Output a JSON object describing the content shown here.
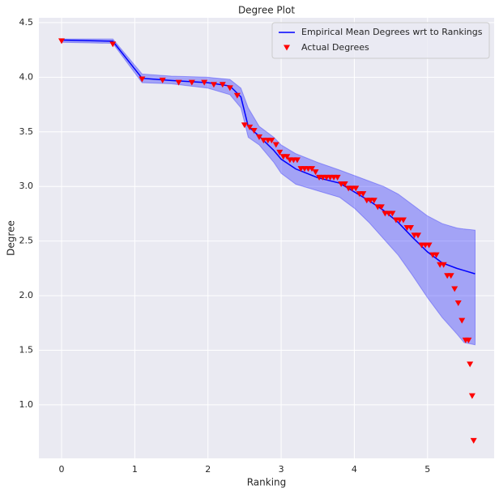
{
  "chart_data": {
    "type": "line",
    "title": "Degree Plot",
    "x_label": "Ranking",
    "y_label": "Degree",
    "xlim": [
      -0.31,
      5.91
    ],
    "ylim": [
      0.51,
      4.544
    ],
    "xticks": [
      0,
      1,
      2,
      3,
      4,
      5
    ],
    "yticks": [
      {
        "value": 1,
        "label": "1.0"
      },
      1.5,
      {
        "value": 2,
        "label": "2.0"
      },
      2.5,
      {
        "value": 3,
        "label": "3.0"
      },
      3.5,
      {
        "value": 4,
        "label": "4.0"
      },
      4.5
    ],
    "grid": true,
    "legend": "upper right",
    "series": [
      {
        "name": "Empirical Mean Degrees wrt to Rankings",
        "type": "line",
        "color": "#0000ff",
        "x": [
          0,
          0.7,
          1.1,
          1.5,
          2.0,
          2.3,
          2.45,
          2.55,
          2.7,
          2.9,
          3.0,
          3.2,
          3.5,
          3.8,
          4.0,
          4.2,
          4.4,
          4.6,
          4.8,
          5.0,
          5.2,
          5.4,
          5.5,
          5.65
        ],
        "values": [
          4.34,
          4.33,
          3.99,
          3.97,
          3.95,
          3.92,
          3.82,
          3.55,
          3.46,
          3.33,
          3.25,
          3.16,
          3.08,
          3.03,
          2.95,
          2.87,
          2.78,
          2.67,
          2.53,
          2.4,
          2.3,
          2.25,
          2.23,
          2.2
        ],
        "upper": [
          4.35,
          4.35,
          4.03,
          4.01,
          4.0,
          3.98,
          3.9,
          3.72,
          3.55,
          3.45,
          3.38,
          3.3,
          3.22,
          3.15,
          3.1,
          3.05,
          3.0,
          2.93,
          2.83,
          2.73,
          2.66,
          2.62,
          2.61,
          2.6
        ],
        "lower": [
          4.32,
          4.31,
          3.95,
          3.94,
          3.9,
          3.84,
          3.72,
          3.45,
          3.38,
          3.22,
          3.12,
          3.02,
          2.96,
          2.9,
          2.8,
          2.67,
          2.52,
          2.37,
          2.18,
          1.98,
          1.8,
          1.65,
          1.57,
          1.55
        ]
      },
      {
        "name": "Actual Degrees",
        "type": "scatter",
        "color": "#ff0000",
        "x": [
          0,
          0.7,
          1.1,
          1.38,
          1.6,
          1.78,
          1.95,
          2.08,
          2.2,
          2.3,
          2.4,
          2.5,
          2.57,
          2.63,
          2.7,
          2.76,
          2.82,
          2.87,
          2.93,
          2.98,
          3.03,
          3.08,
          3.12,
          3.17,
          3.22,
          3.27,
          3.32,
          3.37,
          3.42,
          3.47,
          3.52,
          3.57,
          3.62,
          3.67,
          3.72,
          3.77,
          3.82,
          3.87,
          3.92,
          3.97,
          4.02,
          4.07,
          4.12,
          4.17,
          4.22,
          4.27,
          4.32,
          4.37,
          4.42,
          4.47,
          4.52,
          4.57,
          4.62,
          4.67,
          4.72,
          4.77,
          4.82,
          4.87,
          4.92,
          4.97,
          5.02,
          5.07,
          5.12,
          5.17,
          5.22,
          5.27,
          5.32,
          5.37,
          5.42,
          5.47,
          5.52,
          5.56,
          5.58,
          5.61,
          5.63
        ],
        "values": [
          4.33,
          4.3,
          3.98,
          3.97,
          3.95,
          3.95,
          3.95,
          3.93,
          3.93,
          3.9,
          3.83,
          3.56,
          3.54,
          3.51,
          3.45,
          3.42,
          3.42,
          3.42,
          3.38,
          3.31,
          3.27,
          3.27,
          3.24,
          3.24,
          3.24,
          3.16,
          3.16,
          3.16,
          3.16,
          3.13,
          3.08,
          3.08,
          3.08,
          3.08,
          3.08,
          3.08,
          3.02,
          3.02,
          2.98,
          2.98,
          2.98,
          2.93,
          2.93,
          2.87,
          2.87,
          2.87,
          2.81,
          2.81,
          2.75,
          2.75,
          2.75,
          2.69,
          2.69,
          2.69,
          2.62,
          2.62,
          2.55,
          2.55,
          2.46,
          2.46,
          2.46,
          2.37,
          2.37,
          2.28,
          2.28,
          2.18,
          2.18,
          2.06,
          1.93,
          1.77,
          1.59,
          1.59,
          1.37,
          1.08,
          0.67
        ]
      }
    ]
  }
}
